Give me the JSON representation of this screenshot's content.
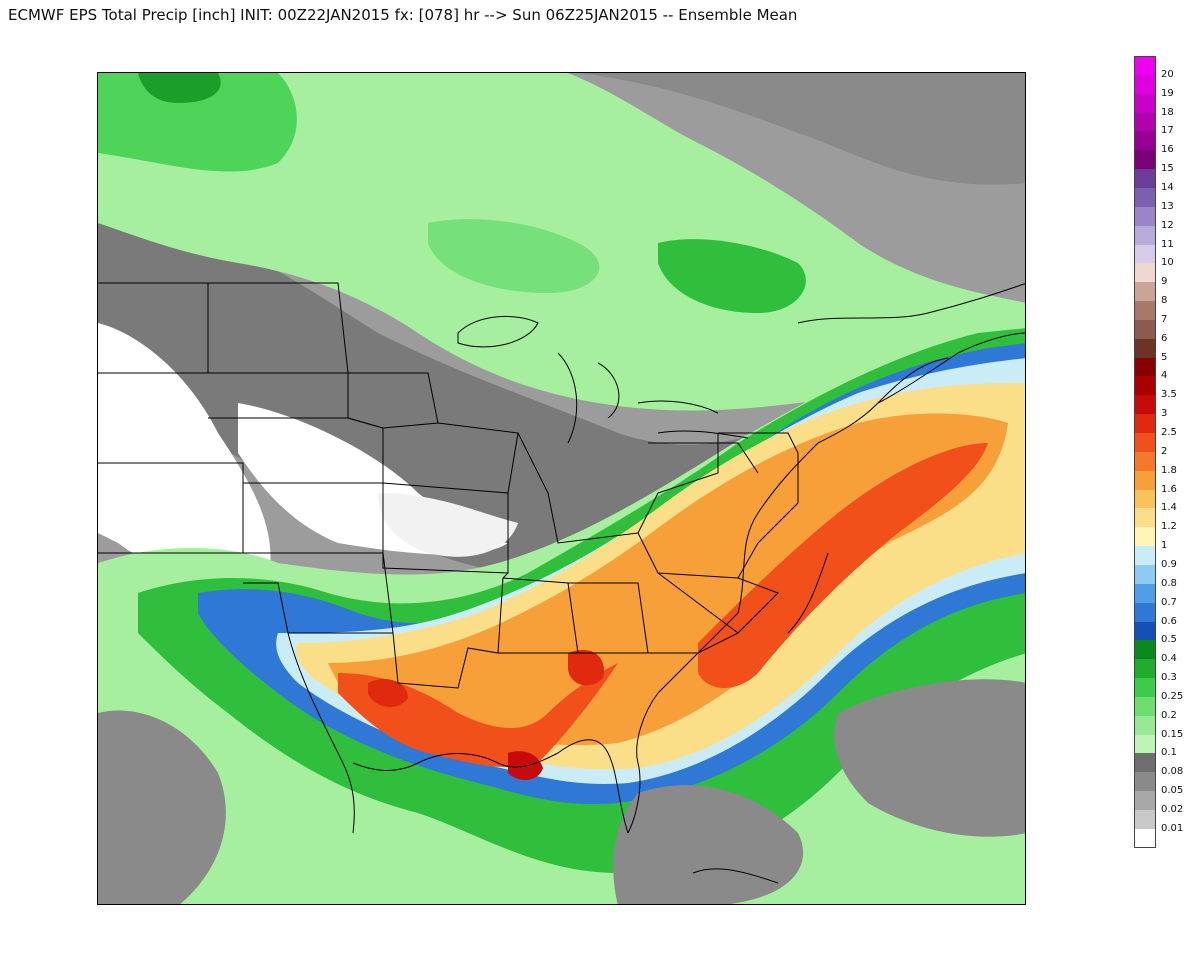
{
  "title": "ECMWF EPS Total Precip [inch] INIT: 00Z22JAN2015 fx: [078] hr --> Sun 06Z25JAN2015 -- Ensemble Mean",
  "legend": {
    "entries": [
      {
        "label": "20",
        "color": "#f000f0"
      },
      {
        "label": "19",
        "color": "#de00de"
      },
      {
        "label": "18",
        "color": "#c800c8"
      },
      {
        "label": "17",
        "color": "#b000b0"
      },
      {
        "label": "16",
        "color": "#960096"
      },
      {
        "label": "15",
        "color": "#7a007a"
      },
      {
        "label": "14",
        "color": "#6a3d9a"
      },
      {
        "label": "13",
        "color": "#7d5fb2"
      },
      {
        "label": "12",
        "color": "#9a86c7"
      },
      {
        "label": "11",
        "color": "#b8aad9"
      },
      {
        "label": "10",
        "color": "#d6ccea"
      },
      {
        "label": "9",
        "color": "#f0d8d0"
      },
      {
        "label": "8",
        "color": "#caa497"
      },
      {
        "label": "7",
        "color": "#a8786a"
      },
      {
        "label": "6",
        "color": "#8c5a4e"
      },
      {
        "label": "5",
        "color": "#6e3328"
      },
      {
        "label": "4",
        "color": "#8a0000"
      },
      {
        "label": "3.5",
        "color": "#a80000"
      },
      {
        "label": "3",
        "color": "#c80a0a"
      },
      {
        "label": "2.5",
        "color": "#e02a10"
      },
      {
        "label": "2",
        "color": "#f2501a"
      },
      {
        "label": "1.8",
        "color": "#f5792a"
      },
      {
        "label": "1.6",
        "color": "#f7a03a"
      },
      {
        "label": "1.4",
        "color": "#f9c25c"
      },
      {
        "label": "1.2",
        "color": "#fbdf88"
      },
      {
        "label": "1",
        "color": "#fdf5b4"
      },
      {
        "label": "0.9",
        "color": "#c9ecf7"
      },
      {
        "label": "0.8",
        "color": "#8ccbf4"
      },
      {
        "label": "0.7",
        "color": "#4f9fe8"
      },
      {
        "label": "0.6",
        "color": "#2f78d6"
      },
      {
        "label": "0.5",
        "color": "#1650b4"
      },
      {
        "label": "0.4",
        "color": "#0a8a1e"
      },
      {
        "label": "0.3",
        "color": "#1fad2e"
      },
      {
        "label": "0.25",
        "color": "#3fcb4a"
      },
      {
        "label": "0.2",
        "color": "#6ede6e"
      },
      {
        "label": "0.15",
        "color": "#97ea94"
      },
      {
        "label": "0.1",
        "color": "#bff3b8"
      },
      {
        "label": "0.08",
        "color": "#6e6e6e"
      },
      {
        "label": "0.05",
        "color": "#8a8a8a"
      },
      {
        "label": "0.02",
        "color": "#a8a8a8"
      },
      {
        "label": "0.01",
        "color": "#c8c8c8"
      },
      {
        "label": "",
        "color": "#ffffff"
      }
    ]
  },
  "map": {
    "background_color": "#9c9c9c",
    "border_color": "#000000"
  }
}
